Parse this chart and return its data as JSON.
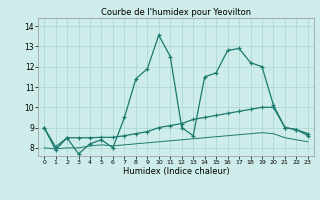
{
  "title": "Courbe de l'humidex pour Yeovilton",
  "xlabel": "Humidex (Indice chaleur)",
  "background_color": "#ceecea",
  "grid_color": "#aed8d4",
  "line_color": "#1a7a6e",
  "x_ticks": [
    0,
    1,
    2,
    3,
    4,
    5,
    6,
    7,
    8,
    9,
    10,
    11,
    12,
    13,
    14,
    15,
    16,
    17,
    18,
    19,
    20,
    21,
    22,
    23
  ],
  "y_ticks": [
    8,
    9,
    10,
    11,
    12,
    13,
    14
  ],
  "ylim": [
    7.6,
    14.4
  ],
  "xlim": [
    -0.5,
    23.5
  ],
  "series1_x": [
    0,
    1,
    2,
    3,
    4,
    5,
    6,
    7,
    8,
    9,
    10,
    11,
    12,
    13,
    14,
    15,
    16,
    17,
    18,
    19,
    20,
    21,
    22,
    23
  ],
  "series1_y": [
    9.0,
    7.9,
    8.5,
    7.7,
    8.2,
    8.4,
    8.0,
    9.5,
    11.4,
    11.9,
    13.55,
    12.5,
    9.0,
    8.6,
    11.5,
    11.7,
    12.8,
    12.9,
    12.2,
    12.0,
    10.1,
    9.0,
    8.9,
    8.6
  ],
  "series2_x": [
    0,
    1,
    2,
    3,
    4,
    5,
    6,
    7,
    8,
    9,
    10,
    11,
    12,
    13,
    14,
    15,
    16,
    17,
    18,
    19,
    20,
    21,
    22,
    23
  ],
  "series2_y": [
    9.0,
    8.05,
    8.5,
    8.5,
    8.5,
    8.52,
    8.52,
    8.6,
    8.7,
    8.8,
    9.0,
    9.1,
    9.2,
    9.4,
    9.5,
    9.6,
    9.7,
    9.8,
    9.9,
    10.0,
    10.0,
    9.0,
    8.9,
    8.7
  ],
  "series3_x": [
    0,
    1,
    2,
    3,
    4,
    5,
    6,
    7,
    8,
    9,
    10,
    11,
    12,
    13,
    14,
    15,
    16,
    17,
    18,
    19,
    20,
    21,
    22,
    23
  ],
  "series3_y": [
    8.0,
    7.95,
    8.0,
    8.0,
    8.1,
    8.15,
    8.1,
    8.15,
    8.2,
    8.25,
    8.3,
    8.35,
    8.4,
    8.45,
    8.5,
    8.55,
    8.6,
    8.65,
    8.7,
    8.75,
    8.7,
    8.5,
    8.4,
    8.3
  ],
  "title_fontsize": 6,
  "xlabel_fontsize": 6,
  "ytick_fontsize": 5.5,
  "xtick_fontsize": 4.5
}
